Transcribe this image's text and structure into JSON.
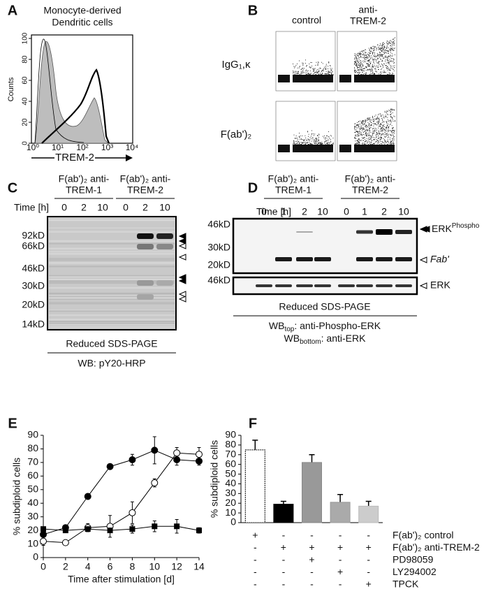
{
  "panels": {
    "A": {
      "label": "A",
      "title": [
        "Monocyte-derived",
        "Dendritic cells"
      ],
      "ylabel": "Counts",
      "yticks": [
        0,
        20,
        40,
        60,
        80,
        100
      ],
      "xticks": [
        "10⁰",
        "10¹",
        "10²",
        "10³",
        "10⁴"
      ],
      "xlabel": "TREM-2"
    },
    "B": {
      "label": "B",
      "columns": [
        [
          "control"
        ],
        [
          "anti-",
          "TREM-2"
        ]
      ],
      "rows": [
        "IgG₁,κ",
        "F(ab')₂"
      ]
    },
    "C": {
      "label": "C",
      "groups": [
        [
          "F(ab')₂ anti-",
          "TREM-1"
        ],
        [
          "F(ab')₂ anti-",
          "TREM-2"
        ]
      ],
      "time_label": "Time [h]",
      "lanes": [
        "0",
        "2",
        "10",
        "0",
        "2",
        "10"
      ],
      "markers": [
        "92kD",
        "66kD",
        "46kD",
        "30kD",
        "20kD",
        "14kD"
      ],
      "footer": "Reduced SDS-PAGE",
      "wb": "WB: pY20-HRP"
    },
    "D": {
      "label": "D",
      "groups": [
        [
          "F(ab')₂ anti-",
          "TREM-1"
        ],
        [
          "F(ab')₂ anti-",
          "TREM-2"
        ]
      ],
      "time_label": "Time [h]",
      "lanes": [
        "0",
        "1",
        "2",
        "10",
        "0",
        "1",
        "2",
        "10"
      ],
      "markers_top": [
        "46kD",
        "30kD",
        "20kD"
      ],
      "markers_bottom": [
        "46kD"
      ],
      "band_phospho": [
        "ERK",
        "Phospho"
      ],
      "band_fab": "Fab'",
      "band_erk": "ERK",
      "footer": "Reduced SDS-PAGE",
      "wb_top": [
        "WB",
        "top",
        ": anti-Phospho-ERK"
      ],
      "wb_bottom": [
        "WB",
        "bottom",
        ": anti-ERK"
      ]
    },
    "E": {
      "label": "E"
    },
    "F": {
      "label": "F"
    }
  },
  "chart_data": [
    {
      "type": "line",
      "xlabel": "Time after stimulation [d]",
      "ylabel": "% subdiploid cells",
      "xlim": [
        0,
        14
      ],
      "xticks": [
        0,
        2,
        4,
        6,
        8,
        10,
        12,
        14
      ],
      "ylim": [
        0,
        90
      ],
      "yticks": [
        0,
        10,
        20,
        30,
        40,
        50,
        60,
        70,
        80,
        90
      ],
      "series": [
        {
          "marker": "filled-circle",
          "color": "#000000",
          "x": [
            0,
            2,
            4,
            6,
            8,
            10,
            12,
            14
          ],
          "values": [
            17,
            22,
            45,
            67,
            72,
            79,
            72,
            71
          ],
          "errors": [
            null,
            null,
            null,
            null,
            4,
            10,
            4,
            3
          ]
        },
        {
          "marker": "open-circle",
          "color": "#000000",
          "x": [
            0,
            2,
            4,
            6,
            8,
            10,
            12,
            14
          ],
          "values": [
            12,
            11,
            22,
            23,
            33,
            55,
            77,
            76
          ],
          "errors": [
            3,
            null,
            3,
            8,
            8,
            3,
            4,
            5
          ]
        },
        {
          "marker": "square",
          "color": "#000000",
          "x": [
            0,
            2,
            4,
            6,
            8,
            10,
            12,
            14
          ],
          "values": [
            21,
            20,
            21,
            20,
            21,
            23,
            23,
            20
          ],
          "errors": [
            null,
            null,
            null,
            null,
            3,
            4,
            5,
            2
          ]
        }
      ]
    },
    {
      "type": "bar",
      "ylabel": "% subdiploid cells",
      "ylim": [
        0,
        90
      ],
      "yticks": [
        0,
        10,
        20,
        30,
        40,
        50,
        60,
        70,
        80,
        90
      ],
      "values": [
        75,
        19,
        62,
        21,
        17
      ],
      "errors": [
        10,
        3,
        8,
        8,
        5
      ],
      "colors": [
        "#ffffff",
        "#000000",
        "#999999",
        "#aaaaaa",
        "#cccccc"
      ],
      "edge_colors": [
        "#000000",
        "#000000",
        "#888888",
        "#999999",
        "#bbbbbb"
      ],
      "treatments": {
        "labels": [
          "F(ab')₂ control",
          "F(ab')₂ anti-TREM-2",
          "PD98059",
          "LY294002",
          "TPCK"
        ],
        "signs": [
          [
            "+",
            "-",
            "-",
            "-",
            "-"
          ],
          [
            "-",
            "+",
            "+",
            "+",
            "+"
          ],
          [
            "-",
            "-",
            "+",
            "-",
            "-"
          ],
          [
            "-",
            "-",
            "-",
            "+",
            "-"
          ],
          [
            "-",
            "-",
            "-",
            "-",
            "+"
          ]
        ]
      }
    }
  ]
}
